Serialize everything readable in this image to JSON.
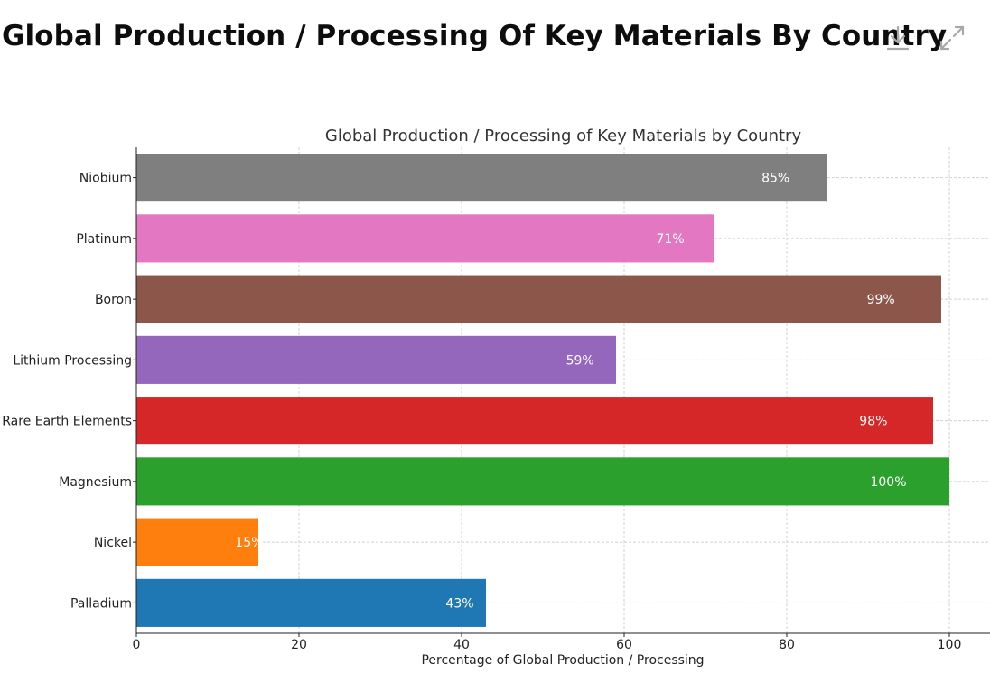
{
  "page": {
    "title": "Global Production / Processing Of Key Materials By Country"
  },
  "toolbar": {
    "download_icon": "download-icon",
    "expand_icon": "expand-icon"
  },
  "chart_data": {
    "type": "bar",
    "orientation": "horizontal",
    "title": "Global Production / Processing of Key Materials by Country",
    "xlabel": "Percentage of Global Production / Processing",
    "ylabel": "",
    "xlim": [
      0,
      105
    ],
    "xticks": [
      0,
      20,
      40,
      60,
      80,
      100
    ],
    "grid": true,
    "categories": [
      "Niobium",
      "Platinum",
      "Boron",
      "Lithium Processing",
      "Rare Earth Elements",
      "Magnesium",
      "Nickel",
      "Palladium"
    ],
    "values": [
      85,
      71,
      99,
      59,
      98,
      100,
      15,
      43
    ],
    "value_labels": [
      "85%",
      "71%",
      "99%",
      "59%",
      "98%",
      "100%",
      "15%",
      "43%"
    ],
    "colors": [
      "#7f7f7f",
      "#e377c2",
      "#8c564b",
      "#9467bd",
      "#d62728",
      "#2ca02c",
      "#ff7f0e",
      "#1f77b4"
    ]
  }
}
